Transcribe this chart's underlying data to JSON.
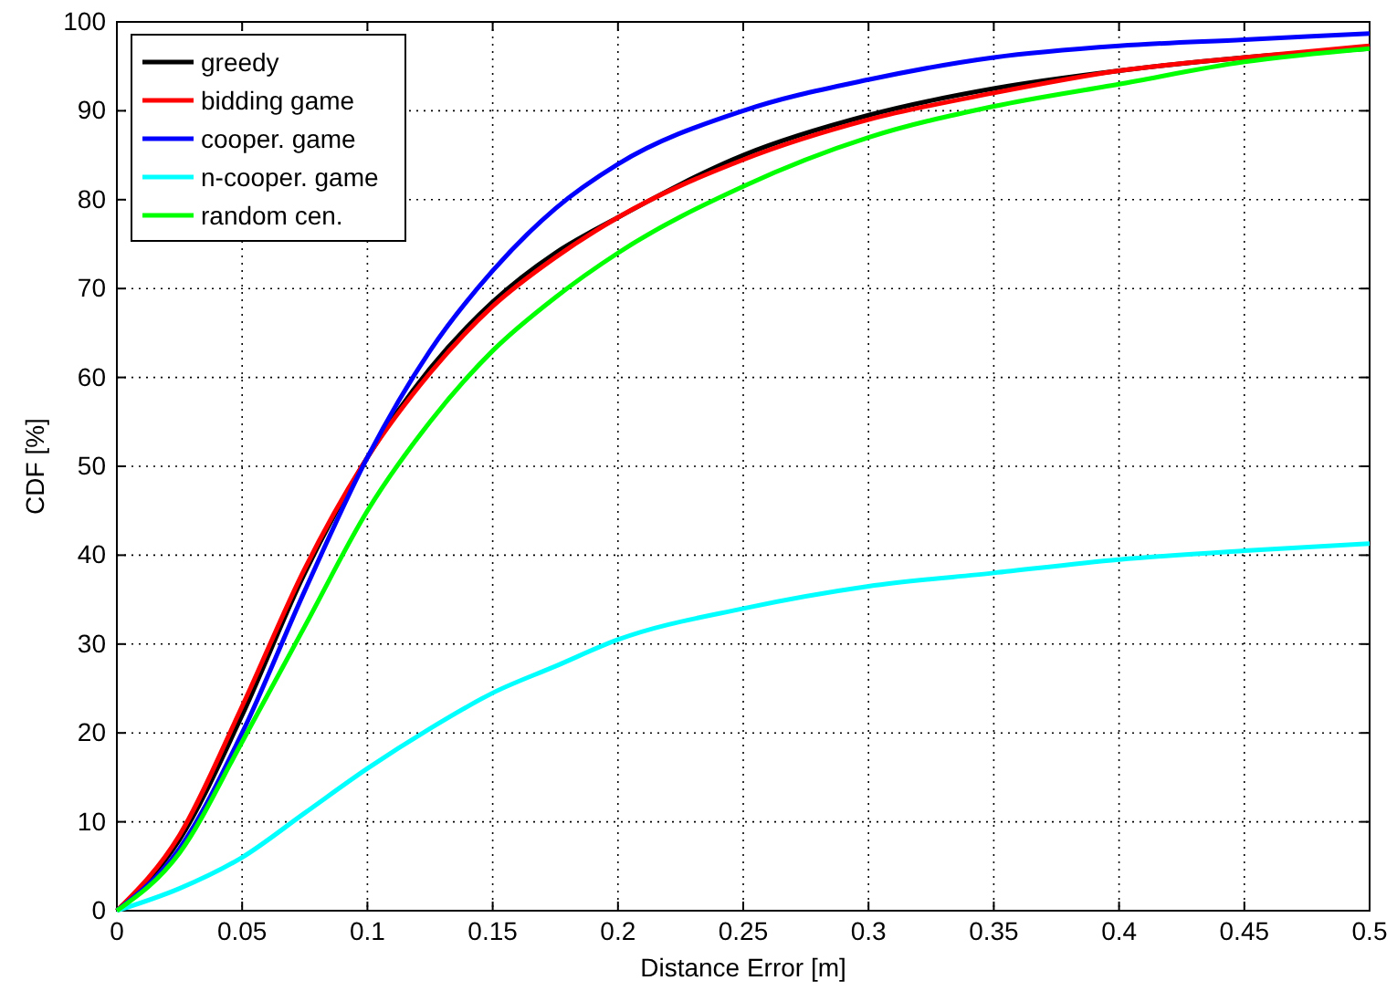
{
  "chart_data": {
    "type": "line",
    "xlabel": "Distance Error [m]",
    "ylabel": "CDF [%]",
    "x": [
      0,
      0.025,
      0.05,
      0.075,
      0.1,
      0.125,
      0.15,
      0.175,
      0.2,
      0.25,
      0.3,
      0.35,
      0.4,
      0.45,
      0.5
    ],
    "series": [
      {
        "name": "greedy",
        "color": "#000000",
        "values": [
          0,
          8,
          22,
          38,
          51,
          61,
          68.5,
          74,
          78,
          85,
          89.5,
          92.5,
          94.5,
          96,
          97
        ]
      },
      {
        "name": "bidding game",
        "color": "#ff0000",
        "values": [
          0,
          8.5,
          23,
          38.5,
          51,
          60.5,
          68,
          73.5,
          78,
          84.5,
          89,
          92,
          94.5,
          96,
          97.3
        ]
      },
      {
        "name": "cooper. game",
        "color": "#0000ff",
        "values": [
          0,
          7,
          20,
          36,
          51,
          63,
          72,
          79,
          84,
          90,
          93.5,
          96,
          97.3,
          98,
          98.7
        ]
      },
      {
        "name": "n-cooper. game",
        "color": "#00ffff",
        "values": [
          0,
          2.5,
          6,
          11,
          16,
          20.5,
          24.5,
          27.5,
          30.5,
          34,
          36.5,
          38,
          39.5,
          40.5,
          41.3
        ]
      },
      {
        "name": "random cen.",
        "color": "#00ff00",
        "values": [
          0,
          6.5,
          19,
          32,
          45,
          55,
          63,
          69,
          74,
          81.5,
          87,
          90.5,
          93,
          95.5,
          97
        ]
      }
    ],
    "xlim": [
      0,
      0.5
    ],
    "xticks": [
      0,
      0.05,
      0.1,
      0.15,
      0.2,
      0.25,
      0.3,
      0.35,
      0.4,
      0.45,
      0.5
    ],
    "ylim": [
      0,
      100
    ],
    "yticks": [
      0,
      10,
      20,
      30,
      40,
      50,
      60,
      70,
      80,
      90,
      100
    ],
    "grid": true,
    "legend": "top left",
    "line_style": "solid",
    "marker": "none"
  }
}
